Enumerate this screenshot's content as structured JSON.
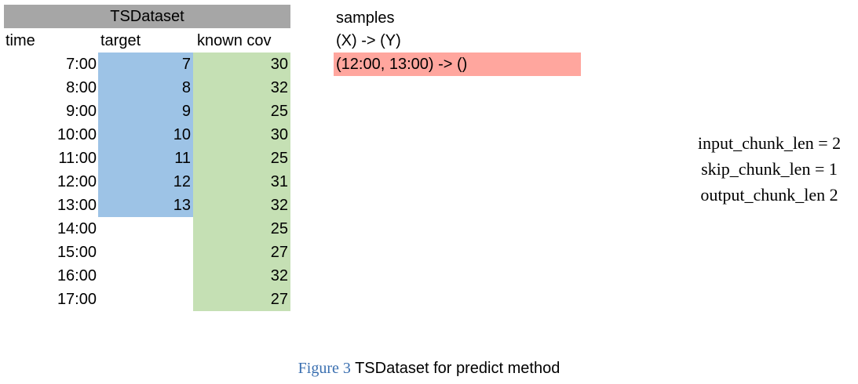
{
  "dataset": {
    "title": "TSDataset",
    "headers": {
      "time": "time",
      "target": "target",
      "cov": "known cov"
    },
    "rows": [
      {
        "time": "7:00",
        "target": "7",
        "cov": "30"
      },
      {
        "time": "8:00",
        "target": "8",
        "cov": "32"
      },
      {
        "time": "9:00",
        "target": "9",
        "cov": "25"
      },
      {
        "time": "10:00",
        "target": "10",
        "cov": "30"
      },
      {
        "time": "11:00",
        "target": "11",
        "cov": "25"
      },
      {
        "time": "12:00",
        "target": "12",
        "cov": "31"
      },
      {
        "time": "13:00",
        "target": "13",
        "cov": "32"
      },
      {
        "time": "14:00",
        "target": "",
        "cov": "25"
      },
      {
        "time": "15:00",
        "target": "",
        "cov": "27"
      },
      {
        "time": "16:00",
        "target": "",
        "cov": "32"
      },
      {
        "time": "17:00",
        "target": "",
        "cov": "27"
      }
    ]
  },
  "samples": {
    "title": "samples",
    "subtitle": "(X) -> (Y)",
    "rows": [
      "(12:00, 13:00) -> ()"
    ]
  },
  "params": [
    "input_chunk_len = 2",
    "skip_chunk_len = 1",
    "output_chunk_len 2"
  ],
  "caption": {
    "label": "Figure 3",
    "text": " TSDataset for predict method"
  },
  "colors": {
    "header": "#a6a6a6",
    "target": "#9dc3e6",
    "cov": "#c5e0b4",
    "sample": "#ffa69e",
    "caption_label": "#3a6fb0"
  }
}
